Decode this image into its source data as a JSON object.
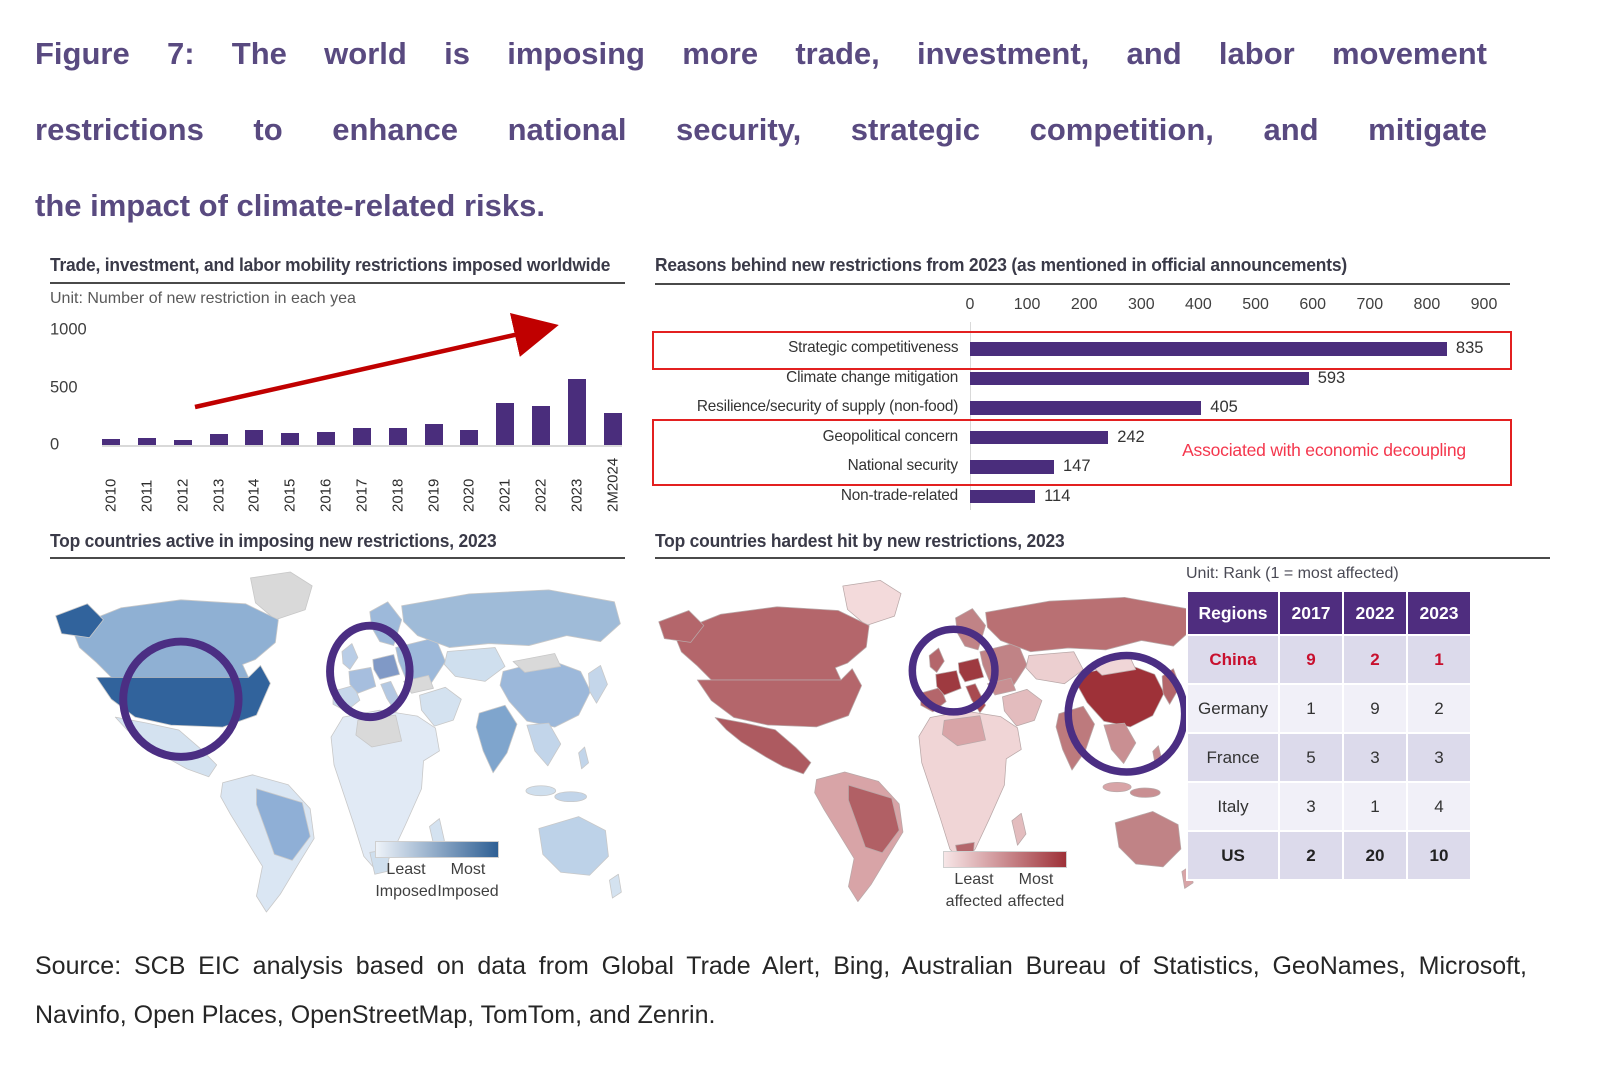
{
  "figure_title": {
    "line1": "Figure 7: The world is imposing more trade, investment, and labor movement",
    "line2": "restrictions to enhance national security, strategic competition, and mitigate",
    "line3": "the impact of climate-related risks."
  },
  "source": {
    "line1": "Source:  SCB EIC analysis based on data from Global Trade Alert, Bing, Australian Bureau of Statistics, GeoNames, Microsoft,",
    "line2": "Navinfo, Open Places, OpenStreetMap, TomTom, and Zenrin."
  },
  "ts": {
    "title": "Trade, investment, and labor mobility restrictions imposed worldwide",
    "unit": "Unit: Number of new restriction in each yea",
    "yticks": [
      "1000",
      "500",
      "0"
    ]
  },
  "reasons": {
    "title": "Reasons behind new restrictions from 2023 (as mentioned in official announcements)",
    "annotation": "Associated with economic decoupling"
  },
  "map_blue": {
    "title": "Top countries active in imposing new restrictions, 2023",
    "legend": {
      "least": "Least",
      "most": "Most",
      "least_sub": "Imposed",
      "most_sub": "Imposed"
    }
  },
  "map_red": {
    "title": "Top countries hardest hit by new restrictions, 2023",
    "unit_note": "Unit: Rank (1 = most affected)",
    "legend": {
      "least": "Least",
      "most": "Most",
      "least_sub": "affected",
      "most_sub": "affected"
    }
  },
  "rank_table": {
    "headers": [
      "Regions",
      "2017",
      "2022",
      "2023"
    ],
    "rows": [
      {
        "region": "China",
        "values": [
          "9",
          "2",
          "1"
        ],
        "emphasis": "china"
      },
      {
        "region": "Germany",
        "values": [
          "1",
          "9",
          "2"
        ],
        "emphasis": "normal"
      },
      {
        "region": "France",
        "values": [
          "5",
          "3",
          "3"
        ],
        "emphasis": "normal"
      },
      {
        "region": "Italy",
        "values": [
          "3",
          "1",
          "4"
        ],
        "emphasis": "normal"
      },
      {
        "region": "US",
        "values": [
          "2",
          "20",
          "10"
        ],
        "emphasis": "bold"
      }
    ]
  },
  "chart_data": [
    {
      "type": "bar",
      "title": "Trade, investment, and labor mobility restrictions imposed worldwide",
      "unit": "Number of new restriction in each year",
      "categories": [
        "2010",
        "2011",
        "2012",
        "2013",
        "2014",
        "2015",
        "2016",
        "2017",
        "2018",
        "2019",
        "2020",
        "2021",
        "2022",
        "2023",
        "2M2024"
      ],
      "values": [
        55,
        65,
        45,
        95,
        130,
        105,
        115,
        145,
        145,
        180,
        135,
        365,
        340,
        575,
        275
      ],
      "ylim": [
        0,
        1000
      ],
      "yticks": [
        0,
        500,
        1000
      ],
      "annotation": "red upward trend arrow from 2012 to 2023"
    },
    {
      "type": "bar",
      "orientation": "horizontal",
      "title": "Reasons behind new restrictions from 2023 (as mentioned in official announcements)",
      "categories": [
        "Strategic competitiveness",
        "Climate change mitigation",
        "Resilience/security of supply (non-food)",
        "Geopolitical concern",
        "National security",
        "Non-trade-related"
      ],
      "values": [
        835,
        593,
        405,
        242,
        147,
        114
      ],
      "xlim": [
        0,
        900
      ],
      "xticks": [
        0,
        100,
        200,
        300,
        400,
        500,
        600,
        700,
        800,
        900
      ],
      "highlight_boxes": [
        [
          "Strategic competitiveness"
        ],
        [
          "Geopolitical concern",
          "National security"
        ]
      ],
      "annotation": "Associated with economic decoupling"
    },
    {
      "type": "heatmap",
      "subtype": "choropleth-world-map",
      "title": "Top countries active in imposing new restrictions, 2023",
      "legend": [
        "Least Imposed",
        "Most Imposed"
      ],
      "highlighted_regions": [
        "United States",
        "Europe"
      ],
      "palette": "blue"
    },
    {
      "type": "heatmap",
      "subtype": "choropleth-world-map",
      "title": "Top countries hardest hit by new restrictions, 2023",
      "legend": [
        "Least affected",
        "Most affected"
      ],
      "highlighted_regions": [
        "Europe",
        "China"
      ],
      "palette": "red"
    },
    {
      "type": "table",
      "unit": "Rank (1 = most affected)",
      "headers": [
        "Regions",
        "2017",
        "2022",
        "2023"
      ],
      "rows": [
        [
          "China",
          "9",
          "2",
          "1"
        ],
        [
          "Germany",
          "1",
          "9",
          "2"
        ],
        [
          "France",
          "5",
          "3",
          "3"
        ],
        [
          "Italy",
          "3",
          "1",
          "4"
        ],
        [
          "US",
          "2",
          "20",
          "10"
        ]
      ]
    }
  ],
  "colors": {
    "title_purple": "#594a80",
    "bar_purple": "#4a2d7c",
    "table_header_purple": "#4f2d7f",
    "circle_purple": "#4b2e83",
    "trend_arrow_red": "#c00000",
    "red_box": "#e32020",
    "annotation_red": "#f4374d",
    "china_red": "#c8102e",
    "us_map_blue": "#31639c",
    "china_map_red": "#9e3138"
  }
}
